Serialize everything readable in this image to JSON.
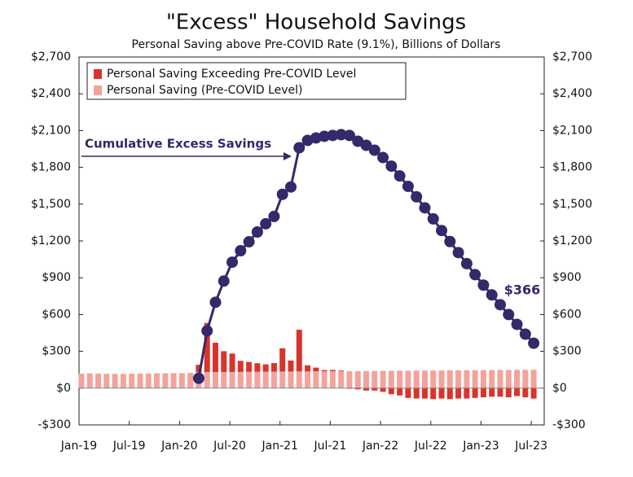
{
  "chart_data": {
    "type": "stacked-bar-line",
    "title": "\"Excess\" Household Savings",
    "subtitle": "Personal Saving above Pre-COVID Rate (9.1%), Billions of Dollars",
    "categories": [
      "Jan-19",
      null,
      null,
      null,
      null,
      null,
      "Jul-19",
      null,
      null,
      null,
      null,
      null,
      "Jan-20",
      null,
      null,
      null,
      null,
      null,
      "Jul-20",
      null,
      null,
      null,
      null,
      null,
      "Jan-21",
      null,
      null,
      null,
      null,
      null,
      "Jul-21",
      null,
      null,
      null,
      null,
      null,
      "Jan-22",
      null,
      null,
      null,
      null,
      null,
      "Jul-22",
      null,
      null,
      null,
      null,
      null,
      "Jan-23",
      null,
      null,
      null,
      null,
      null,
      "Jul-23"
    ],
    "series": [
      {
        "name": "Personal Saving Exceeding Pre-COVID Level",
        "color": "#d9342b",
        "kind": "bar",
        "values": [
          0,
          0,
          0,
          0,
          0,
          0,
          0,
          0,
          0,
          0,
          0,
          0,
          0,
          0,
          60,
          400,
          240,
          170,
          150,
          90,
          80,
          70,
          60,
          70,
          190,
          90,
          340,
          50,
          30,
          10,
          10,
          5,
          -5,
          -10,
          -20,
          -20,
          -30,
          -50,
          -60,
          -80,
          -85,
          -85,
          -90,
          -85,
          -90,
          -85,
          -85,
          -80,
          -75,
          -70,
          -70,
          -75,
          -65,
          -75,
          -85
        ]
      },
      {
        "name": "Personal Saving (Pre-COVID Level)",
        "color": "#f2a39c",
        "kind": "bar",
        "values": [
          118,
          120,
          118,
          117,
          116,
          116,
          117,
          118,
          119,
          120,
          121,
          122,
          122,
          125,
          130,
          131,
          130,
          131,
          132,
          132,
          133,
          133,
          134,
          134,
          135,
          135,
          136,
          136,
          137,
          137,
          138,
          138,
          139,
          139,
          140,
          140,
          141,
          141,
          142,
          142,
          143,
          143,
          144,
          144,
          145,
          145,
          146,
          146,
          147,
          147,
          148,
          148,
          149,
          149,
          150
        ]
      },
      {
        "name": "Cumulative Excess Savings",
        "color": "#35286b",
        "kind": "line",
        "values": [
          null,
          null,
          null,
          null,
          null,
          null,
          null,
          null,
          null,
          null,
          null,
          null,
          null,
          null,
          80,
          467,
          700,
          873,
          1027,
          1120,
          1193,
          1273,
          1340,
          1400,
          1580,
          1640,
          1960,
          2020,
          2040,
          2053,
          2060,
          2067,
          2060,
          2013,
          1980,
          1940,
          1880,
          1810,
          1730,
          1645,
          1560,
          1470,
          1380,
          1285,
          1195,
          1105,
          1015,
          925,
          840,
          760,
          680,
          600,
          520,
          440,
          366
        ]
      }
    ],
    "annotations": [
      "Cumulative Excess Savings",
      "$366"
    ],
    "ylim": [
      -300,
      2700
    ],
    "yticks": [
      {
        "value": -300,
        "label": "-$300"
      },
      {
        "value": 0,
        "label": "$0"
      },
      {
        "value": 300,
        "label": "$300"
      },
      {
        "value": 600,
        "label": "$600"
      },
      {
        "value": 900,
        "label": "$900"
      },
      {
        "value": 1200,
        "label": "$1,200"
      },
      {
        "value": 1500,
        "label": "$1,500"
      },
      {
        "value": 1800,
        "label": "$1,800"
      },
      {
        "value": 2100,
        "label": "$2,100"
      },
      {
        "value": 2400,
        "label": "$2,400"
      },
      {
        "value": 2700,
        "label": "$2,700"
      }
    ],
    "legend": "top-left",
    "grid": false
  }
}
